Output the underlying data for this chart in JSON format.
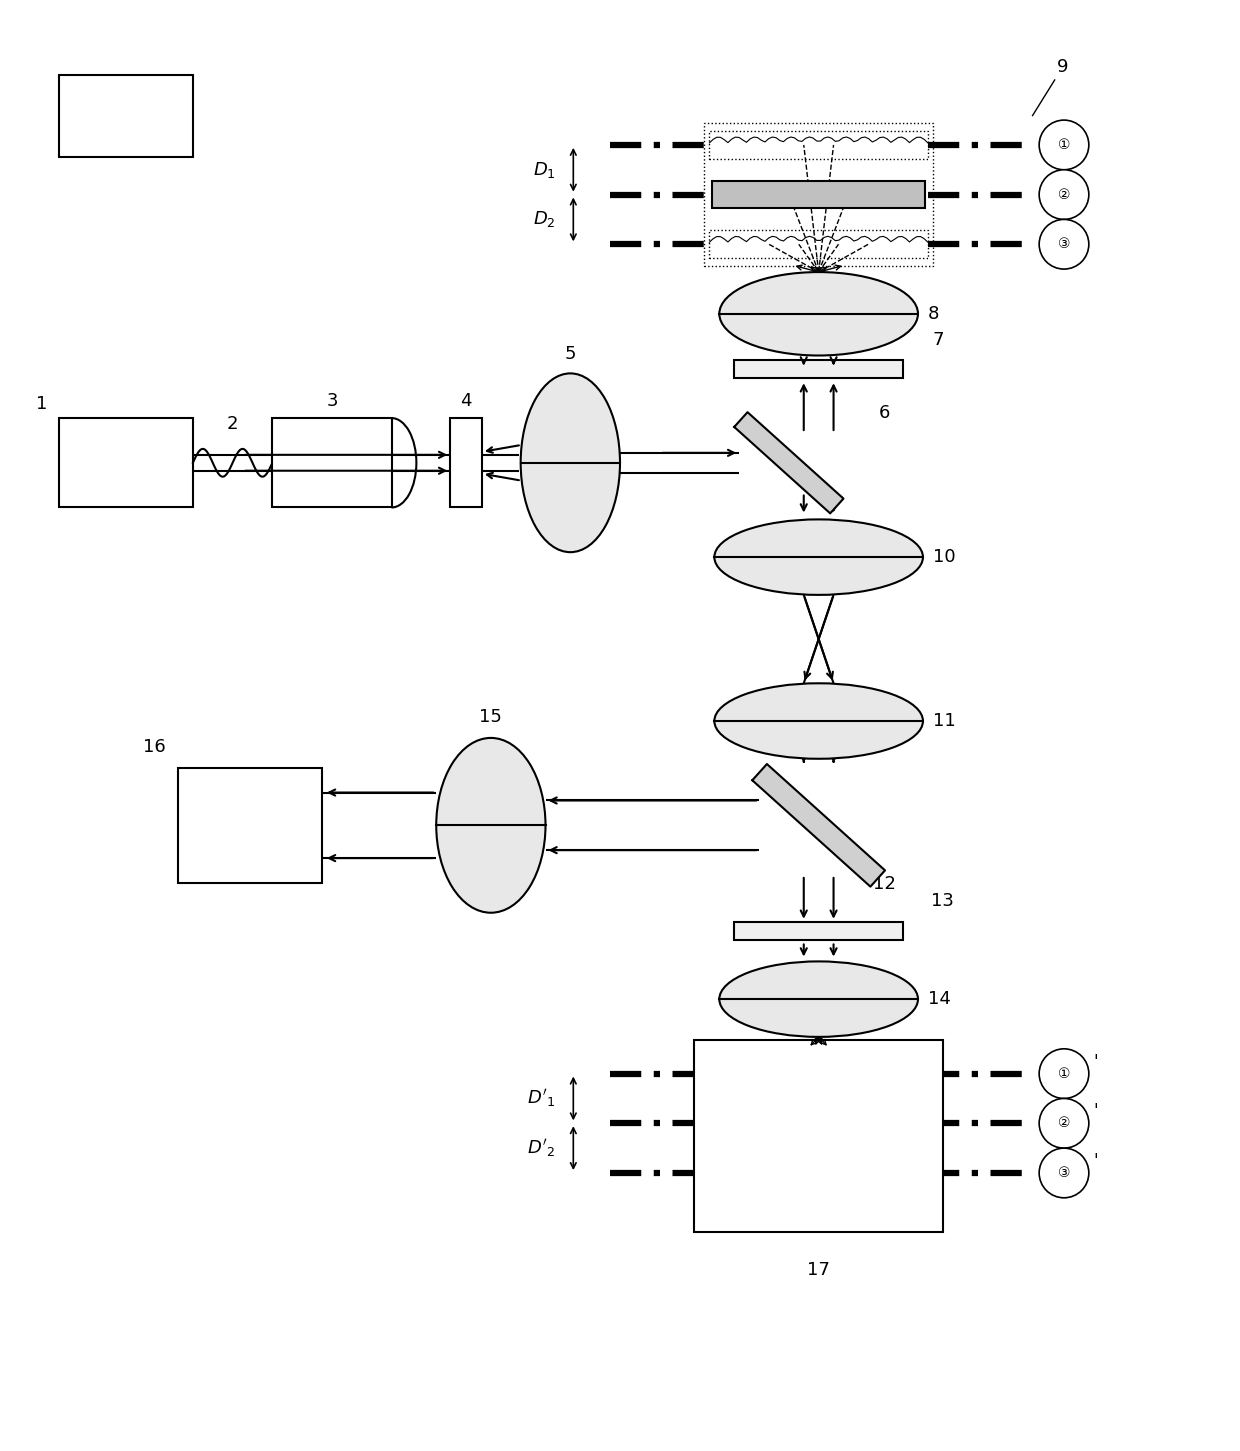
{
  "bg": "#ffffff",
  "fig_w": 12.4,
  "fig_h": 14.51,
  "lw": 1.5
}
